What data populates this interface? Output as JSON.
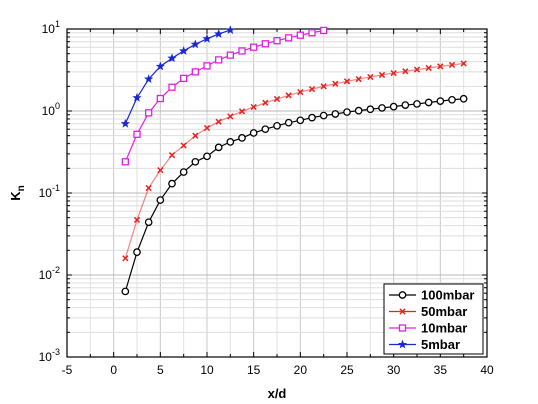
{
  "chart_data": {
    "type": "line",
    "xlabel": "x/d",
    "ylabel_main": "K",
    "ylabel_sub": "n",
    "xlim": [
      -5,
      40
    ],
    "ylim": [
      0.001,
      10
    ],
    "yscale": "log",
    "grid": true,
    "legend_position": "bottom-right",
    "x_ticks": [
      "-5",
      "0",
      "5",
      "10",
      "15",
      "20",
      "25",
      "30",
      "35",
      "40"
    ],
    "y_ticks": [
      {
        "base": "10",
        "exp": "-3",
        "value": 0.001
      },
      {
        "base": "10",
        "exp": "-2",
        "value": 0.01
      },
      {
        "base": "10",
        "exp": "-1",
        "value": 0.1
      },
      {
        "base": "10",
        "exp": "0",
        "value": 1
      },
      {
        "base": "10",
        "exp": "1",
        "value": 10
      }
    ],
    "series": [
      {
        "name": "100mbar",
        "color": "#000000",
        "marker": "circle",
        "x": [
          1.25,
          2.5,
          3.75,
          5,
          6.25,
          7.5,
          8.75,
          10,
          11.25,
          12.5,
          13.75,
          15,
          16.25,
          17.5,
          18.75,
          20,
          21.25,
          22.5,
          23.75,
          25,
          26.25,
          27.5,
          28.75,
          30,
          31.25,
          32.5,
          33.75,
          35,
          36.25,
          37.5
        ],
        "y": [
          0.0063,
          0.019,
          0.044,
          0.082,
          0.13,
          0.18,
          0.24,
          0.28,
          0.36,
          0.42,
          0.47,
          0.54,
          0.6,
          0.66,
          0.72,
          0.77,
          0.83,
          0.88,
          0.92,
          0.97,
          1.01,
          1.05,
          1.09,
          1.13,
          1.18,
          1.22,
          1.27,
          1.32,
          1.37,
          1.41
        ]
      },
      {
        "name": "50mbar",
        "color": "#e8201e",
        "marker": "x",
        "x": [
          1.25,
          2.5,
          3.75,
          5,
          6.25,
          7.5,
          8.75,
          10,
          11.25,
          12.5,
          13.75,
          15,
          16.25,
          17.5,
          18.75,
          20,
          21.25,
          22.5,
          23.75,
          25,
          26.25,
          27.5,
          28.75,
          30,
          31.25,
          32.5,
          33.75,
          35,
          36.25,
          37.5
        ],
        "y": [
          0.016,
          0.047,
          0.115,
          0.19,
          0.29,
          0.38,
          0.5,
          0.62,
          0.74,
          0.86,
          0.99,
          1.12,
          1.26,
          1.4,
          1.55,
          1.7,
          1.85,
          2.0,
          2.15,
          2.3,
          2.45,
          2.6,
          2.75,
          2.9,
          3.05,
          3.2,
          3.35,
          3.5,
          3.65,
          3.8
        ]
      },
      {
        "name": "10mbar",
        "color": "#e020e0",
        "marker": "square",
        "x": [
          1.25,
          2.5,
          3.75,
          5,
          6.25,
          7.5,
          8.75,
          10,
          11.25,
          12.5,
          13.75,
          15,
          16.25,
          17.5,
          18.75,
          20,
          21.25,
          22.5
        ],
        "y": [
          0.24,
          0.52,
          0.95,
          1.42,
          1.95,
          2.5,
          3.0,
          3.55,
          4.2,
          4.8,
          5.4,
          6.0,
          6.6,
          7.2,
          7.8,
          8.4,
          9.0,
          9.6
        ]
      },
      {
        "name": "5mbar",
        "color": "#1a28d0",
        "marker": "star",
        "x": [
          1.25,
          2.5,
          3.75,
          5,
          6.25,
          7.5,
          8.75,
          10,
          11.25,
          12.5
        ],
        "y": [
          0.7,
          1.45,
          2.45,
          3.5,
          4.4,
          5.4,
          6.5,
          7.6,
          8.7,
          9.7
        ]
      }
    ]
  }
}
